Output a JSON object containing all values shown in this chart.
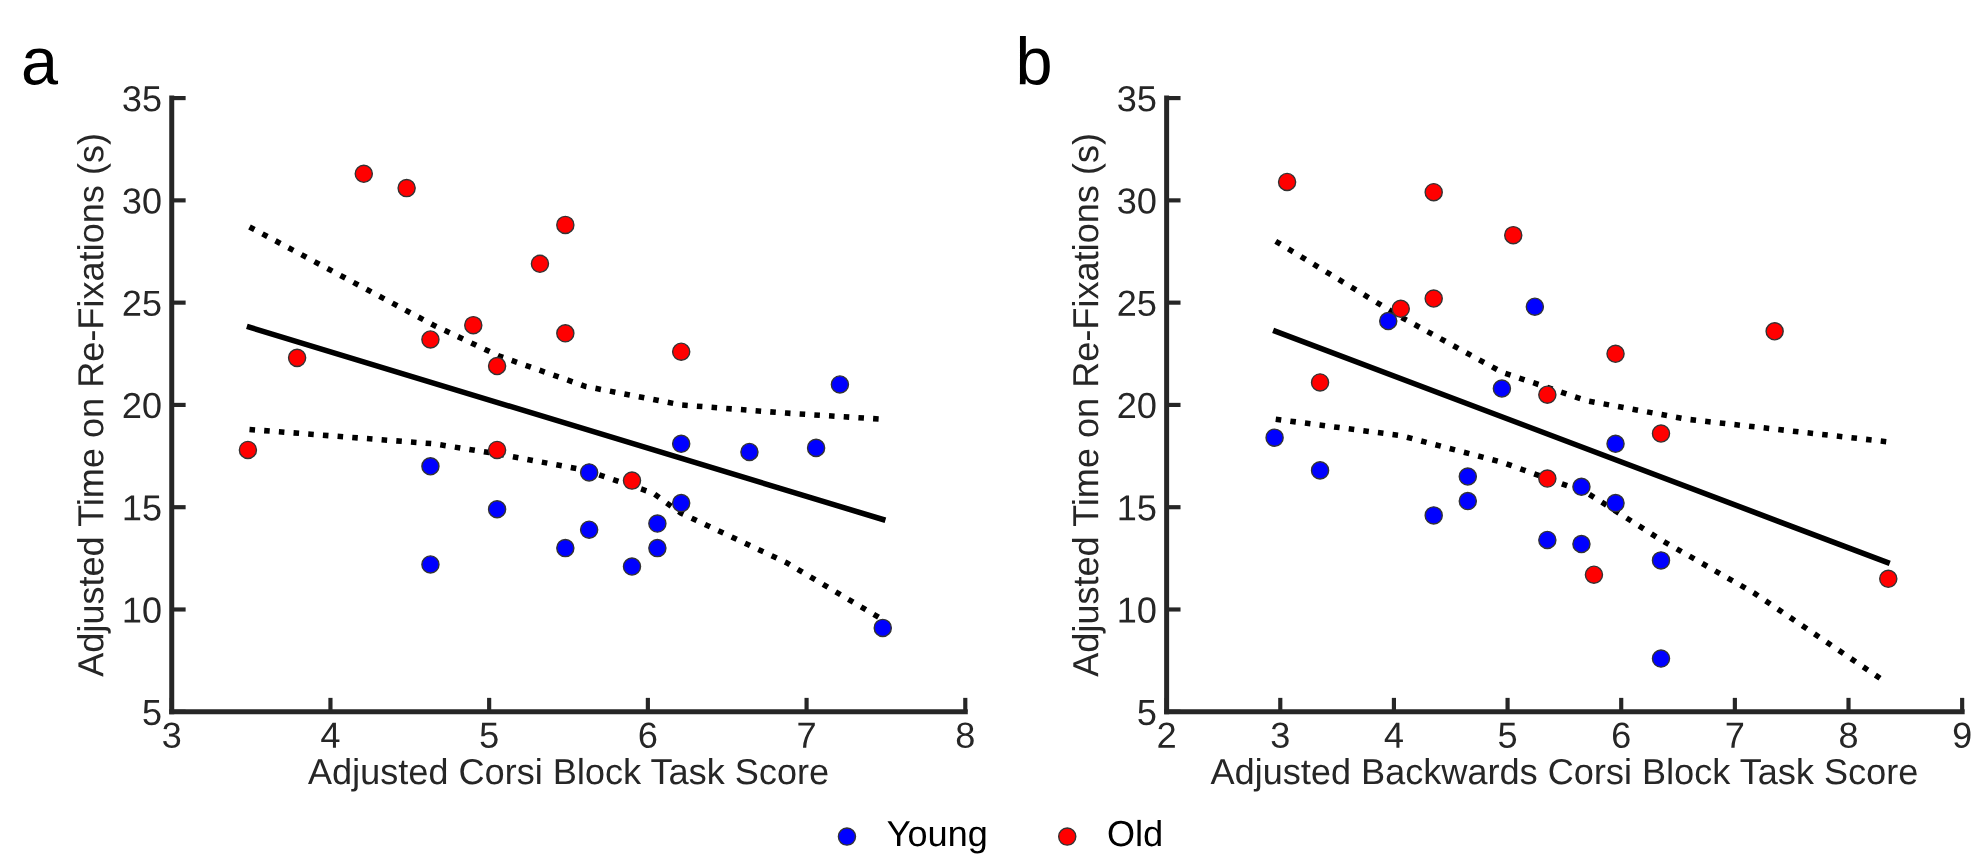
{
  "chart_data": [
    {
      "type": "scatter",
      "title": "a",
      "xlabel": "Adjusted Corsi Block Task Score",
      "ylabel": "Adjusted Time on Re-Fixations (s)",
      "xlim": [
        3,
        8
      ],
      "xticks": [
        3,
        4,
        5,
        6,
        7,
        8
      ],
      "ylim": [
        5,
        35
      ],
      "yticks": [
        5,
        10,
        15,
        20,
        25,
        30,
        35
      ],
      "grid": false,
      "legend": "bottom",
      "marker": "circle",
      "series": [
        {
          "name": "Young",
          "color": "#0000ff",
          "x": [
            4.63,
            4.63,
            5.05,
            5.48,
            5.63,
            5.63,
            5.9,
            6.06,
            6.06,
            6.21,
            6.21,
            6.64,
            7.06,
            7.21,
            7.48
          ],
          "values": [
            17.0,
            12.2,
            14.9,
            13.0,
            16.7,
            13.9,
            12.1,
            14.2,
            13.0,
            18.1,
            15.2,
            17.7,
            17.9,
            21.0,
            9.1
          ]
        },
        {
          "name": "Old",
          "color": "#ff0000",
          "x": [
            3.48,
            3.79,
            4.21,
            4.48,
            4.63,
            4.9,
            5.05,
            5.05,
            5.32,
            5.48,
            5.48,
            5.9,
            6.21
          ],
          "values": [
            17.8,
            22.3,
            31.3,
            30.6,
            23.2,
            23.9,
            21.9,
            17.8,
            26.9,
            28.8,
            23.5,
            16.3,
            22.6
          ]
        },
        {
          "type": "line",
          "color": "#000000",
          "line_style": "solid",
          "marker": "none",
          "x": [
            3.49,
            7.48
          ],
          "values": [
            23.8,
            14.4
          ]
        },
        {
          "type": "line",
          "color": "#000000",
          "line_style": "dotted",
          "marker": "none",
          "x": [
            3.49,
            4.65,
            5.06,
            5.61,
            6.21,
            6.87,
            7.48
          ],
          "values": [
            28.7,
            23.9,
            22.4,
            20.9,
            20.0,
            19.6,
            19.3
          ]
        },
        {
          "type": "line",
          "color": "#000000",
          "line_style": "dotted",
          "marker": "none",
          "x": [
            3.49,
            4.65,
            5.06,
            5.61,
            6.03,
            6.21,
            6.87,
            7.48
          ],
          "values": [
            18.8,
            18.1,
            17.6,
            16.8,
            15.7,
            14.7,
            12.3,
            9.5
          ]
        }
      ]
    },
    {
      "type": "scatter",
      "title": "b",
      "xlabel": "Adjusted Backwards Corsi Block Task Score",
      "ylabel": "Adjusted Time on Re-Fixations (s)",
      "xlim": [
        2,
        9
      ],
      "xticks": [
        2,
        3,
        4,
        5,
        6,
        7,
        8,
        9
      ],
      "ylim": [
        5,
        35
      ],
      "yticks": [
        5,
        10,
        15,
        20,
        25,
        30,
        35
      ],
      "grid": false,
      "marker": "circle",
      "series": [
        {
          "color": "#0000ff",
          "x": [
            2.95,
            3.35,
            3.95,
            4.35,
            4.65,
            4.65,
            4.95,
            5.24,
            5.35,
            5.65,
            5.65,
            5.95,
            5.95,
            6.35,
            6.35
          ],
          "values": [
            18.4,
            16.8,
            24.1,
            14.6,
            16.5,
            15.3,
            20.8,
            24.8,
            13.4,
            16.0,
            13.2,
            18.1,
            15.2,
            12.4,
            7.6
          ]
        },
        {
          "color": "#ff0000",
          "x": [
            3.06,
            3.35,
            4.06,
            4.35,
            4.35,
            5.05,
            5.35,
            5.35,
            5.76,
            5.95,
            6.35,
            7.35,
            8.35
          ],
          "values": [
            30.9,
            21.1,
            24.7,
            30.4,
            25.2,
            28.3,
            20.5,
            16.4,
            11.7,
            22.5,
            18.6,
            23.6,
            11.5
          ]
        },
        {
          "type": "line",
          "color": "#000000",
          "line_style": "solid",
          "marker": "none",
          "x": [
            2.96,
            8.34
          ],
          "values": [
            23.6,
            12.3
          ]
        },
        {
          "type": "line",
          "color": "#000000",
          "line_style": "dotted",
          "marker": "none",
          "x": [
            2.96,
            4.06,
            4.95,
            5.7,
            6.58,
            8.34
          ],
          "values": [
            28.0,
            24.3,
            21.6,
            20.2,
            19.3,
            18.2
          ]
        },
        {
          "type": "line",
          "color": "#000000",
          "line_style": "dotted",
          "marker": "none",
          "x": [
            2.96,
            4.06,
            4.95,
            5.7,
            6.35,
            7.17,
            8.34
          ],
          "values": [
            19.3,
            18.5,
            17.2,
            15.7,
            13.4,
            10.8,
            6.4
          ]
        }
      ]
    }
  ]
}
